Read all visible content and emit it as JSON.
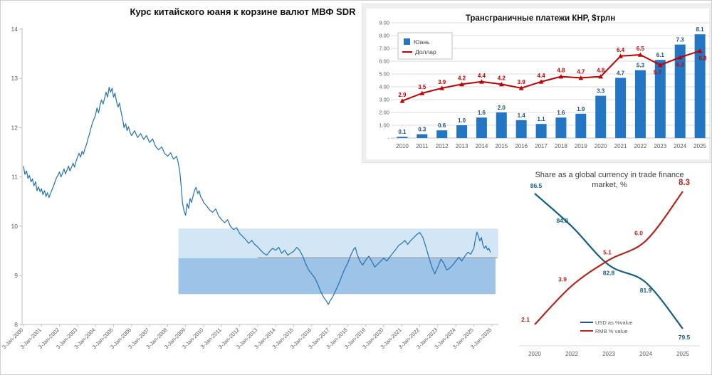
{
  "chart_data": [
    {
      "id": "sdr_rate",
      "type": "line",
      "title": "Курс китайского юаня к корзине валют МВФ SDR",
      "line_color": "#2271b3",
      "y_ticks": [
        8,
        9,
        10,
        11,
        12,
        13,
        14
      ],
      "ylim": [
        7.4,
        14.2
      ],
      "xlim": [
        2000,
        2026.4
      ],
      "x_tick_labels": [
        "3-Jan-2000",
        "3-Jan-2001",
        "3-Jan-2002",
        "3-Jan-2003",
        "3-Jan-2004",
        "3-Jan-2005",
        "3-Jan-2006",
        "3-Jan-2007",
        "3-Jan-2008",
        "3-Jan-2009",
        "3-Jan-2010",
        "3-Jan-2011",
        "3-Jan-2012",
        "3-Jan-2013",
        "3-Jan-2014",
        "3-Jan-2015",
        "3-Jan-2016",
        "3-Jan-2017",
        "3-Jan-2018",
        "3-Jan-2019",
        "3-Jan-2020",
        "3-Jan-2021",
        "3-Jan-2022",
        "3-Jan-2023",
        "3-Jan-2024",
        "3-Jan-2025",
        "3-Jan-2026"
      ],
      "bands": [
        {
          "value_from": 9.35,
          "value_to": 9.95,
          "x_from": 2008.6,
          "x_to": 2026.35,
          "color": "#d2e6f5"
        },
        {
          "value_from": 8.62,
          "value_to": 9.35,
          "x_from": 2008.6,
          "x_to": 2026.2,
          "color": "#9dc3e6"
        }
      ],
      "ref_line": {
        "value": 9.36,
        "x_from": 2013.0,
        "x_to": 2026.3,
        "color": "#9b9b9b"
      },
      "series": [
        [
          2000.0,
          11.22
        ],
        [
          2000.08,
          11.05
        ],
        [
          2000.17,
          11.12
        ],
        [
          2000.25,
          10.97
        ],
        [
          2000.33,
          11.03
        ],
        [
          2000.42,
          10.9
        ],
        [
          2000.5,
          10.96
        ],
        [
          2000.58,
          10.82
        ],
        [
          2000.67,
          10.9
        ],
        [
          2000.75,
          10.72
        ],
        [
          2000.83,
          10.8
        ],
        [
          2000.92,
          10.7
        ],
        [
          2001.0,
          10.76
        ],
        [
          2001.08,
          10.64
        ],
        [
          2001.17,
          10.72
        ],
        [
          2001.25,
          10.6
        ],
        [
          2001.33,
          10.68
        ],
        [
          2001.42,
          10.58
        ],
        [
          2001.5,
          10.66
        ],
        [
          2001.58,
          10.74
        ],
        [
          2001.67,
          10.82
        ],
        [
          2001.75,
          10.9
        ],
        [
          2001.83,
          10.98
        ],
        [
          2001.92,
          11.04
        ],
        [
          2002.0,
          11.1
        ],
        [
          2002.08,
          11.0
        ],
        [
          2002.17,
          11.08
        ],
        [
          2002.25,
          11.16
        ],
        [
          2002.33,
          11.06
        ],
        [
          2002.42,
          11.14
        ],
        [
          2002.5,
          11.22
        ],
        [
          2002.58,
          11.12
        ],
        [
          2002.67,
          11.2
        ],
        [
          2002.75,
          11.28
        ],
        [
          2002.83,
          11.2
        ],
        [
          2002.92,
          11.32
        ],
        [
          2003.0,
          11.4
        ],
        [
          2003.08,
          11.48
        ],
        [
          2003.17,
          11.4
        ],
        [
          2003.25,
          11.52
        ],
        [
          2003.33,
          11.46
        ],
        [
          2003.42,
          11.58
        ],
        [
          2003.5,
          11.66
        ],
        [
          2003.58,
          11.78
        ],
        [
          2003.67,
          11.88
        ],
        [
          2003.75,
          12.0
        ],
        [
          2003.83,
          12.1
        ],
        [
          2003.92,
          12.18
        ],
        [
          2004.0,
          12.26
        ],
        [
          2004.08,
          12.4
        ],
        [
          2004.17,
          12.3
        ],
        [
          2004.25,
          12.46
        ],
        [
          2004.33,
          12.56
        ],
        [
          2004.42,
          12.48
        ],
        [
          2004.5,
          12.6
        ],
        [
          2004.58,
          12.72
        ],
        [
          2004.67,
          12.62
        ],
        [
          2004.75,
          12.82
        ],
        [
          2004.83,
          12.72
        ],
        [
          2004.92,
          12.8
        ],
        [
          2005.0,
          12.62
        ],
        [
          2005.08,
          12.7
        ],
        [
          2005.17,
          12.52
        ],
        [
          2005.25,
          12.42
        ],
        [
          2005.33,
          12.5
        ],
        [
          2005.42,
          12.32
        ],
        [
          2005.5,
          12.18
        ],
        [
          2005.58,
          12.0
        ],
        [
          2005.67,
          12.08
        ],
        [
          2005.75,
          11.94
        ],
        [
          2005.83,
          12.02
        ],
        [
          2005.92,
          11.9
        ],
        [
          2006.0,
          11.84
        ],
        [
          2006.17,
          11.94
        ],
        [
          2006.33,
          11.8
        ],
        [
          2006.5,
          11.88
        ],
        [
          2006.67,
          11.76
        ],
        [
          2006.83,
          11.84
        ],
        [
          2007.0,
          11.7
        ],
        [
          2007.17,
          11.77
        ],
        [
          2007.33,
          11.62
        ],
        [
          2007.5,
          11.55
        ],
        [
          2007.67,
          11.61
        ],
        [
          2007.83,
          11.48
        ],
        [
          2008.0,
          11.42
        ],
        [
          2008.17,
          11.49
        ],
        [
          2008.33,
          11.36
        ],
        [
          2008.5,
          11.42
        ],
        [
          2008.58,
          11.3
        ],
        [
          2008.67,
          11.12
        ],
        [
          2008.75,
          10.82
        ],
        [
          2008.83,
          10.46
        ],
        [
          2008.92,
          10.3
        ],
        [
          2009.0,
          10.22
        ],
        [
          2009.08,
          10.46
        ],
        [
          2009.17,
          10.36
        ],
        [
          2009.25,
          10.56
        ],
        [
          2009.33,
          10.48
        ],
        [
          2009.42,
          10.62
        ],
        [
          2009.5,
          10.73
        ],
        [
          2009.58,
          10.79
        ],
        [
          2009.67,
          10.66
        ],
        [
          2009.75,
          10.72
        ],
        [
          2009.83,
          10.6
        ],
        [
          2009.92,
          10.55
        ],
        [
          2010.0,
          10.48
        ],
        [
          2010.17,
          10.41
        ],
        [
          2010.33,
          10.33
        ],
        [
          2010.5,
          10.28
        ],
        [
          2010.67,
          10.35
        ],
        [
          2010.83,
          10.21
        ],
        [
          2011.0,
          10.13
        ],
        [
          2011.17,
          10.07
        ],
        [
          2011.33,
          10.13
        ],
        [
          2011.5,
          9.99
        ],
        [
          2011.67,
          9.93
        ],
        [
          2011.83,
          9.97
        ],
        [
          2012.0,
          9.85
        ],
        [
          2012.17,
          9.79
        ],
        [
          2012.33,
          9.73
        ],
        [
          2012.5,
          9.65
        ],
        [
          2012.67,
          9.71
        ],
        [
          2012.83,
          9.63
        ],
        [
          2013.0,
          9.58
        ],
        [
          2013.17,
          9.51
        ],
        [
          2013.33,
          9.45
        ],
        [
          2013.5,
          9.41
        ],
        [
          2013.67,
          9.49
        ],
        [
          2013.83,
          9.55
        ],
        [
          2014.0,
          9.51
        ],
        [
          2014.17,
          9.57
        ],
        [
          2014.33,
          9.45
        ],
        [
          2014.5,
          9.51
        ],
        [
          2014.67,
          9.41
        ],
        [
          2014.83,
          9.45
        ],
        [
          2015.0,
          9.49
        ],
        [
          2015.17,
          9.57
        ],
        [
          2015.33,
          9.51
        ],
        [
          2015.5,
          9.39
        ],
        [
          2015.67,
          9.23
        ],
        [
          2015.83,
          9.11
        ],
        [
          2016.0,
          9.03
        ],
        [
          2016.17,
          8.95
        ],
        [
          2016.33,
          8.83
        ],
        [
          2016.5,
          8.67
        ],
        [
          2016.67,
          8.55
        ],
        [
          2016.83,
          8.47
        ],
        [
          2016.92,
          8.41
        ],
        [
          2017.0,
          8.47
        ],
        [
          2017.17,
          8.57
        ],
        [
          2017.33,
          8.69
        ],
        [
          2017.5,
          8.83
        ],
        [
          2017.67,
          8.99
        ],
        [
          2017.83,
          9.13
        ],
        [
          2018.0,
          9.25
        ],
        [
          2018.17,
          9.41
        ],
        [
          2018.33,
          9.53
        ],
        [
          2018.42,
          9.57
        ],
        [
          2018.5,
          9.45
        ],
        [
          2018.67,
          9.29
        ],
        [
          2018.83,
          9.21
        ],
        [
          2019.0,
          9.31
        ],
        [
          2019.17,
          9.39
        ],
        [
          2019.33,
          9.29
        ],
        [
          2019.5,
          9.17
        ],
        [
          2019.67,
          9.23
        ],
        [
          2019.83,
          9.29
        ],
        [
          2020.0,
          9.35
        ],
        [
          2020.17,
          9.29
        ],
        [
          2020.33,
          9.37
        ],
        [
          2020.5,
          9.45
        ],
        [
          2020.67,
          9.53
        ],
        [
          2020.83,
          9.61
        ],
        [
          2021.0,
          9.65
        ],
        [
          2021.17,
          9.71
        ],
        [
          2021.33,
          9.63
        ],
        [
          2021.5,
          9.71
        ],
        [
          2021.67,
          9.77
        ],
        [
          2021.83,
          9.83
        ],
        [
          2022.0,
          9.87
        ],
        [
          2022.17,
          9.77
        ],
        [
          2022.33,
          9.59
        ],
        [
          2022.5,
          9.37
        ],
        [
          2022.67,
          9.17
        ],
        [
          2022.83,
          9.03
        ],
        [
          2023.0,
          9.17
        ],
        [
          2023.17,
          9.33
        ],
        [
          2023.33,
          9.25
        ],
        [
          2023.5,
          9.11
        ],
        [
          2023.67,
          9.15
        ],
        [
          2023.83,
          9.21
        ],
        [
          2024.0,
          9.29
        ],
        [
          2024.17,
          9.37
        ],
        [
          2024.33,
          9.29
        ],
        [
          2024.5,
          9.39
        ],
        [
          2024.67,
          9.47
        ],
        [
          2024.83,
          9.43
        ],
        [
          2025.0,
          9.55
        ],
        [
          2025.08,
          9.72
        ],
        [
          2025.17,
          9.88
        ],
        [
          2025.25,
          9.8
        ],
        [
          2025.33,
          9.7
        ],
        [
          2025.42,
          9.77
        ],
        [
          2025.5,
          9.63
        ],
        [
          2025.58,
          9.55
        ],
        [
          2025.67,
          9.6
        ],
        [
          2025.75,
          9.52
        ],
        [
          2025.83,
          9.55
        ],
        [
          2025.92,
          9.47
        ]
      ]
    },
    {
      "id": "cross_border_payments",
      "type": "bar+line",
      "title": "Трансграничные платежи КНР, $трлн",
      "categories": [
        "2010",
        "2011",
        "2012",
        "2013",
        "2014",
        "2015",
        "2016",
        "2017",
        "2018",
        "2019",
        "2020",
        "2021",
        "2022",
        "2023",
        "2024",
        "2025"
      ],
      "series": [
        {
          "name": "Юань",
          "type": "bar",
          "color": "#2276c3",
          "label_color": "#1f4e79",
          "values": [
            0.1,
            0.3,
            0.6,
            1.0,
            1.6,
            2.0,
            1.4,
            1.1,
            1.6,
            1.9,
            3.3,
            4.7,
            5.3,
            6.1,
            7.3,
            8.1
          ]
        },
        {
          "name": "Доллар",
          "type": "line",
          "color": "#c00000",
          "label_color": "#c00000",
          "values": [
            2.9,
            3.5,
            3.9,
            4.2,
            4.4,
            4.2,
            3.9,
            4.4,
            4.8,
            4.7,
            4.8,
            6.4,
            6.5,
            5.7,
            6.3,
            6.8
          ]
        }
      ],
      "y_ticks": [
        "9.00",
        "8.00",
        "7.00",
        "6.00",
        "5.00",
        "4.00",
        "3.00",
        "2.00",
        "1.00",
        "-"
      ],
      "ylim": [
        0,
        9
      ],
      "legend_position": "upper-left",
      "grid": true
    },
    {
      "id": "trade_finance_share",
      "type": "line",
      "title_line1": "Share as a global currency in trade finance",
      "title_line2": "market, %",
      "categories": [
        "2020",
        "2022",
        "2023",
        "2024",
        "2025"
      ],
      "series": [
        {
          "name": "USD as %value",
          "color": "#156082",
          "values": [
            86.5,
            84.8,
            82.8,
            81.9,
            79.5
          ],
          "axis_range": [
            79.5,
            86.5
          ]
        },
        {
          "name": "RMB % value",
          "color": "#b3251d",
          "values": [
            2.1,
            3.9,
            5.1,
            6.0,
            8.3
          ],
          "axis_range": [
            2.1,
            8.3
          ]
        }
      ],
      "legend_position": "bottom-center",
      "grid": false
    }
  ],
  "colors": {
    "axis_text": "#595959",
    "axis_line": "#bfbfbf",
    "gridline": "#dcdcdc",
    "panel_bg": "#efefef"
  }
}
